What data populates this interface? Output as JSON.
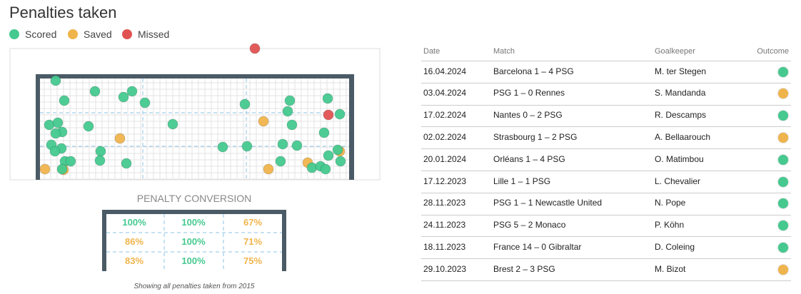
{
  "header": {
    "title": "Penalties taken"
  },
  "legend": [
    {
      "label": "Scored",
      "color": "#45c98f"
    },
    {
      "label": "Saved",
      "color": "#f0b44c"
    },
    {
      "label": "Missed",
      "color": "#e05252"
    }
  ],
  "conversion": {
    "title": "PENALTY CONVERSION",
    "cells": [
      [
        "100%",
        "100%",
        "67%"
      ],
      [
        "86%",
        "100%",
        "71%"
      ],
      [
        "83%",
        "100%",
        "75%"
      ]
    ],
    "colors": [
      [
        "#45c98f",
        "#45c98f",
        "#f0b44c"
      ],
      [
        "#f0b44c",
        "#45c98f",
        "#f0b44c"
      ],
      [
        "#f0b44c",
        "#45c98f",
        "#f0b44c"
      ]
    ],
    "caption": "Showing all penalties taken from 2015"
  },
  "table": {
    "columns": [
      "Date",
      "Match",
      "Goalkeeper",
      "Outcome"
    ],
    "rows": [
      [
        "16.04.2024",
        "Barcelona 1 – 4 PSG",
        "M. ter Stegen"
      ],
      [
        "03.04.2024",
        "PSG 1 – 0 Rennes",
        "S. Mandanda"
      ],
      [
        "17.02.2024",
        "Nantes 0 – 2 PSG",
        "R. Descamps"
      ],
      [
        "02.02.2024",
        "Strasbourg 1 – 2 PSG",
        "A. Bellaarouch"
      ],
      [
        "20.01.2024",
        "Orléans 1 – 4 PSG",
        "O. Matimbou"
      ],
      [
        "17.12.2023",
        "Lille 1 – 1 PSG",
        "L. Chevalier"
      ],
      [
        "28.11.2023",
        "PSG 1 – 1 Newcastle United",
        "N. Pope"
      ],
      [
        "24.11.2023",
        "PSG 5 – 2 Monaco",
        "P. Köhn"
      ],
      [
        "18.11.2023",
        "France 14 – 0 Gibraltar",
        "D. Coleing"
      ],
      [
        "29.10.2023",
        "Brest 2 – 3 PSG",
        "M. Bizot"
      ]
    ],
    "outcome_colors": [
      "#45c98f",
      "#f0b44c",
      "#45c98f",
      "#f0b44c",
      "#45c98f",
      "#45c98f",
      "#45c98f",
      "#45c98f",
      "#45c98f",
      "#f0b44c"
    ]
  }
}
